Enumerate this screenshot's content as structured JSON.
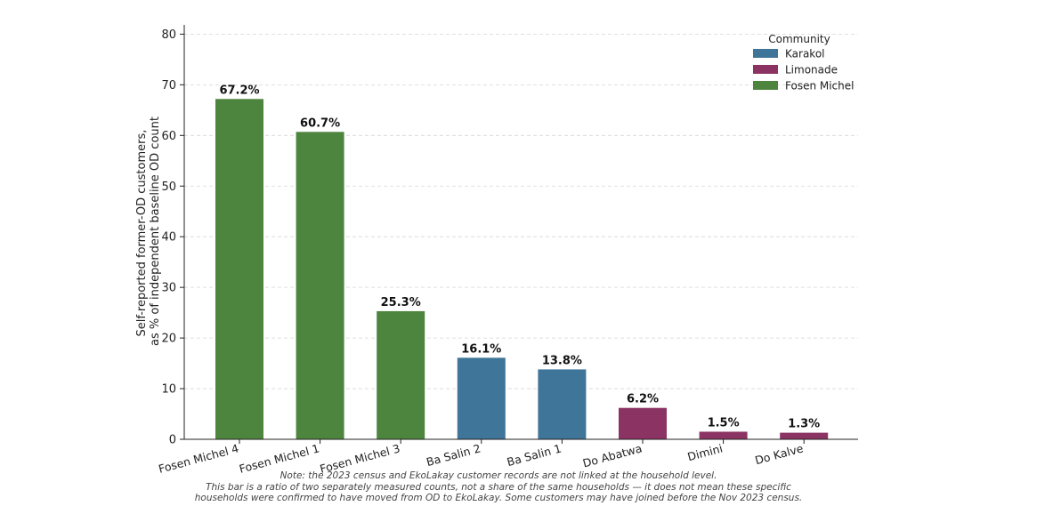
{
  "chart_data": {
    "type": "bar",
    "categories": [
      "Fosen Michel 4",
      "Fosen Michel 1",
      "Fosen Michel 3",
      "Ba Salin 2",
      "Ba Salin 1",
      "Do Abatwa",
      "Dimini",
      "Do Kalve"
    ],
    "values": [
      67.2,
      60.7,
      25.3,
      16.1,
      13.8,
      6.2,
      1.5,
      1.3
    ],
    "value_labels": [
      "67.2%",
      "60.7%",
      "25.3%",
      "16.1%",
      "13.8%",
      "6.2%",
      "1.5%",
      "1.3%"
    ],
    "bar_groups": [
      "Fosen Michel",
      "Fosen Michel",
      "Fosen Michel",
      "Karakol",
      "Karakol",
      "Limonade",
      "Limonade",
      "Limonade"
    ],
    "ylabel_lines": [
      "Self-reported former-OD customers,",
      "as % of independent baseline OD count"
    ],
    "xlabel": "",
    "ylim": [
      0,
      82
    ],
    "yticks": [
      0,
      10,
      20,
      30,
      40,
      50,
      60,
      70,
      80
    ],
    "grid": "horizontal dashed",
    "legend": {
      "title": "Community",
      "placement": "top-right",
      "entries": [
        {
          "name": "Karakol",
          "color": "#3e7599"
        },
        {
          "name": "Limonade",
          "color": "#8b3362"
        },
        {
          "name": "Fosen Michel",
          "color": "#4e853e"
        }
      ]
    }
  },
  "note": {
    "lines": [
      "Note: the 2023 census and EkoLakay customer records are not linked at the household level.",
      "This bar is a ratio of two separately measured counts, not a share of the same households — it does not mean these specific",
      "households were confirmed to have moved from OD to EkoLakay. Some customers may have joined before the Nov 2023 census."
    ]
  }
}
